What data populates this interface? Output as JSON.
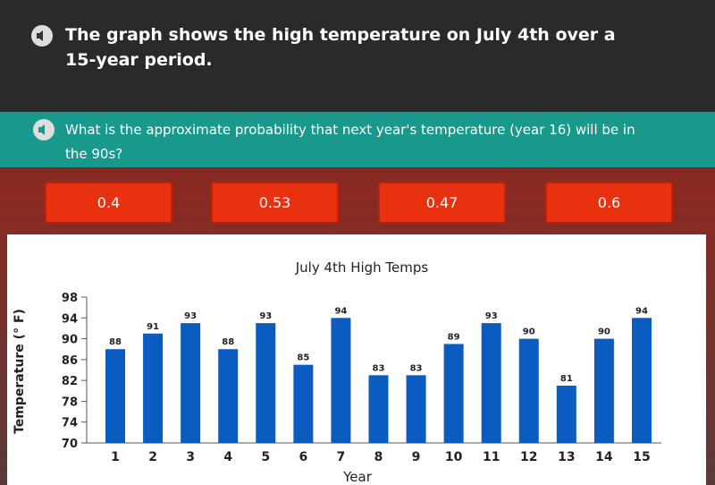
{
  "header": {
    "text": "The graph shows the high temperature on July 4th over a 15-year period."
  },
  "question": {
    "text": "What is the approximate probability that next year's temperature (year 16) will be in the 90s?"
  },
  "answers": [
    "0.4",
    "0.53",
    "0.47",
    "0.6"
  ],
  "chart_data": {
    "type": "bar",
    "title": "July 4th High Temps",
    "x_label": "Year",
    "y_label": "Temperature (° F)",
    "categories": [
      "1",
      "2",
      "3",
      "4",
      "5",
      "6",
      "7",
      "8",
      "9",
      "10",
      "11",
      "12",
      "13",
      "14",
      "15"
    ],
    "values": [
      88,
      91,
      93,
      88,
      93,
      85,
      94,
      83,
      83,
      89,
      93,
      90,
      81,
      90,
      94
    ],
    "color": "#0b5cc0",
    "ylim": [
      70,
      98
    ],
    "yticks": [
      70,
      74,
      78,
      82,
      86,
      90,
      94,
      98
    ],
    "grid": false
  }
}
